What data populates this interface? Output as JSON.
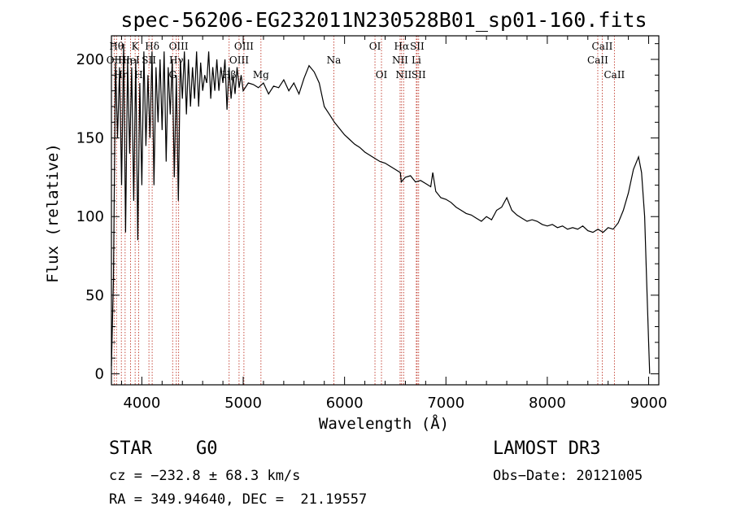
{
  "chart_data": {
    "type": "line",
    "title": "spec-56206-EG232011N230528B01_sp01-160.fits",
    "xlabel": "Wavelength (Å)",
    "ylabel": "Flux (relative)",
    "xlim": [
      3700,
      9100
    ],
    "ylim": [
      -7,
      215
    ],
    "xticks": [
      4000,
      5000,
      6000,
      7000,
      8000,
      9000
    ],
    "yticks": [
      0,
      50,
      100,
      150,
      200
    ],
    "series": [
      {
        "name": "flux",
        "x": [
          3700,
          3720,
          3740,
          3760,
          3780,
          3800,
          3820,
          3840,
          3860,
          3880,
          3900,
          3920,
          3940,
          3960,
          3980,
          4000,
          4020,
          4040,
          4060,
          4080,
          4100,
          4120,
          4140,
          4160,
          4180,
          4200,
          4220,
          4240,
          4260,
          4280,
          4300,
          4320,
          4340,
          4360,
          4380,
          4400,
          4420,
          4440,
          4460,
          4480,
          4500,
          4520,
          4540,
          4560,
          4580,
          4600,
          4620,
          4640,
          4660,
          4680,
          4700,
          4720,
          4740,
          4760,
          4780,
          4800,
          4820,
          4840,
          4860,
          4880,
          4900,
          4920,
          4940,
          4960,
          4980,
          5000,
          5050,
          5100,
          5150,
          5200,
          5250,
          5300,
          5350,
          5400,
          5450,
          5500,
          5550,
          5600,
          5650,
          5700,
          5750,
          5800,
          5850,
          5900,
          5950,
          6000,
          6050,
          6100,
          6150,
          6200,
          6250,
          6300,
          6350,
          6400,
          6450,
          6500,
          6550,
          6560,
          6600,
          6650,
          6700,
          6750,
          6800,
          6850,
          6870,
          6900,
          6950,
          7000,
          7050,
          7100,
          7150,
          7200,
          7250,
          7300,
          7350,
          7400,
          7450,
          7500,
          7550,
          7600,
          7650,
          7700,
          7750,
          7800,
          7850,
          7900,
          7950,
          8000,
          8050,
          8100,
          8150,
          8200,
          8250,
          8300,
          8350,
          8400,
          8450,
          8500,
          8550,
          8600,
          8650,
          8700,
          8750,
          8800,
          8850,
          8900,
          8930,
          8960,
          8980,
          9000,
          9010
        ],
        "values": [
          5,
          60,
          198,
          150,
          195,
          120,
          210,
          90,
          200,
          140,
          195,
          110,
          200,
          85,
          185,
          120,
          205,
          145,
          190,
          150,
          205,
          120,
          195,
          160,
          200,
          155,
          205,
          135,
          195,
          165,
          200,
          125,
          190,
          110,
          200,
          175,
          205,
          165,
          200,
          170,
          195,
          175,
          205,
          170,
          198,
          180,
          190,
          185,
          205,
          175,
          195,
          180,
          200,
          180,
          195,
          185,
          200,
          168,
          195,
          175,
          190,
          178,
          195,
          182,
          190,
          180,
          185,
          184,
          182,
          185,
          178,
          183,
          182,
          187,
          180,
          185,
          178,
          188,
          196,
          192,
          185,
          170,
          165,
          160,
          156,
          152,
          149,
          146,
          144,
          141,
          139,
          137,
          135,
          134,
          132,
          130,
          128,
          122,
          125,
          126,
          122,
          123,
          121,
          119,
          128,
          116,
          112,
          111,
          109,
          106,
          104,
          102,
          101,
          99,
          97,
          100,
          98,
          104,
          106,
          112,
          104,
          101,
          99,
          97,
          98,
          97,
          95,
          94,
          95,
          93,
          94,
          92,
          93,
          92,
          94,
          91,
          90,
          92,
          90,
          93,
          92,
          96,
          104,
          115,
          130,
          138,
          128,
          100,
          60,
          20,
          0
        ]
      }
    ],
    "lines": [
      {
        "wave": 3727,
        "label": "OII",
        "row": 2
      },
      {
        "wave": 3750,
        "label": "Hθ",
        "row": 1
      },
      {
        "wave": 3798,
        "label": "Hη",
        "row": 3
      },
      {
        "wave": 3835,
        "label": "Hη",
        "row": 2
      },
      {
        "wave": 3889,
        "label": "HeI",
        "row": 2
      },
      {
        "wave": 3934,
        "label": "K",
        "row": 1
      },
      {
        "wave": 3969,
        "label": "H",
        "row": 3
      },
      {
        "wave": 4070,
        "label": "SII",
        "row": 2
      },
      {
        "wave": 4102,
        "label": "Hδ",
        "row": 1
      },
      {
        "wave": 4304,
        "label": "G",
        "row": 3
      },
      {
        "wave": 4340,
        "label": "Hγ",
        "row": 2
      },
      {
        "wave": 4363,
        "label": "OIII",
        "row": 1
      },
      {
        "wave": 4861,
        "label": "Hβ",
        "row": 3
      },
      {
        "wave": 4959,
        "label": "OIII",
        "row": 2
      },
      {
        "wave": 5007,
        "label": "OIII",
        "row": 1
      },
      {
        "wave": 5175,
        "label": "Mg",
        "row": 3
      },
      {
        "wave": 5894,
        "label": "Na",
        "row": 2
      },
      {
        "wave": 6300,
        "label": "OI",
        "row": 1
      },
      {
        "wave": 6364,
        "label": "OI",
        "row": 3
      },
      {
        "wave": 6548,
        "label": "NII",
        "row": 2
      },
      {
        "wave": 6563,
        "label": "Hα",
        "row": 1
      },
      {
        "wave": 6583,
        "label": "NII",
        "row": 3
      },
      {
        "wave": 6708,
        "label": "Li",
        "row": 2
      },
      {
        "wave": 6716,
        "label": "SII",
        "row": 1
      },
      {
        "wave": 6731,
        "label": "SII",
        "row": 3
      },
      {
        "wave": 8498,
        "label": "CaII",
        "row": 2
      },
      {
        "wave": 8542,
        "label": "CaII",
        "row": 1
      },
      {
        "wave": 8662,
        "label": "CaII",
        "row": 3
      }
    ]
  },
  "info": {
    "class": "STAR",
    "subclass": "G0",
    "survey": "LAMOST DR3",
    "cz": "cz = −232.8 ± 68.3 km/s",
    "obs_date": "Obs−Date: 20121005",
    "coords": "RA = 349.94640, DEC =  21.19557"
  }
}
